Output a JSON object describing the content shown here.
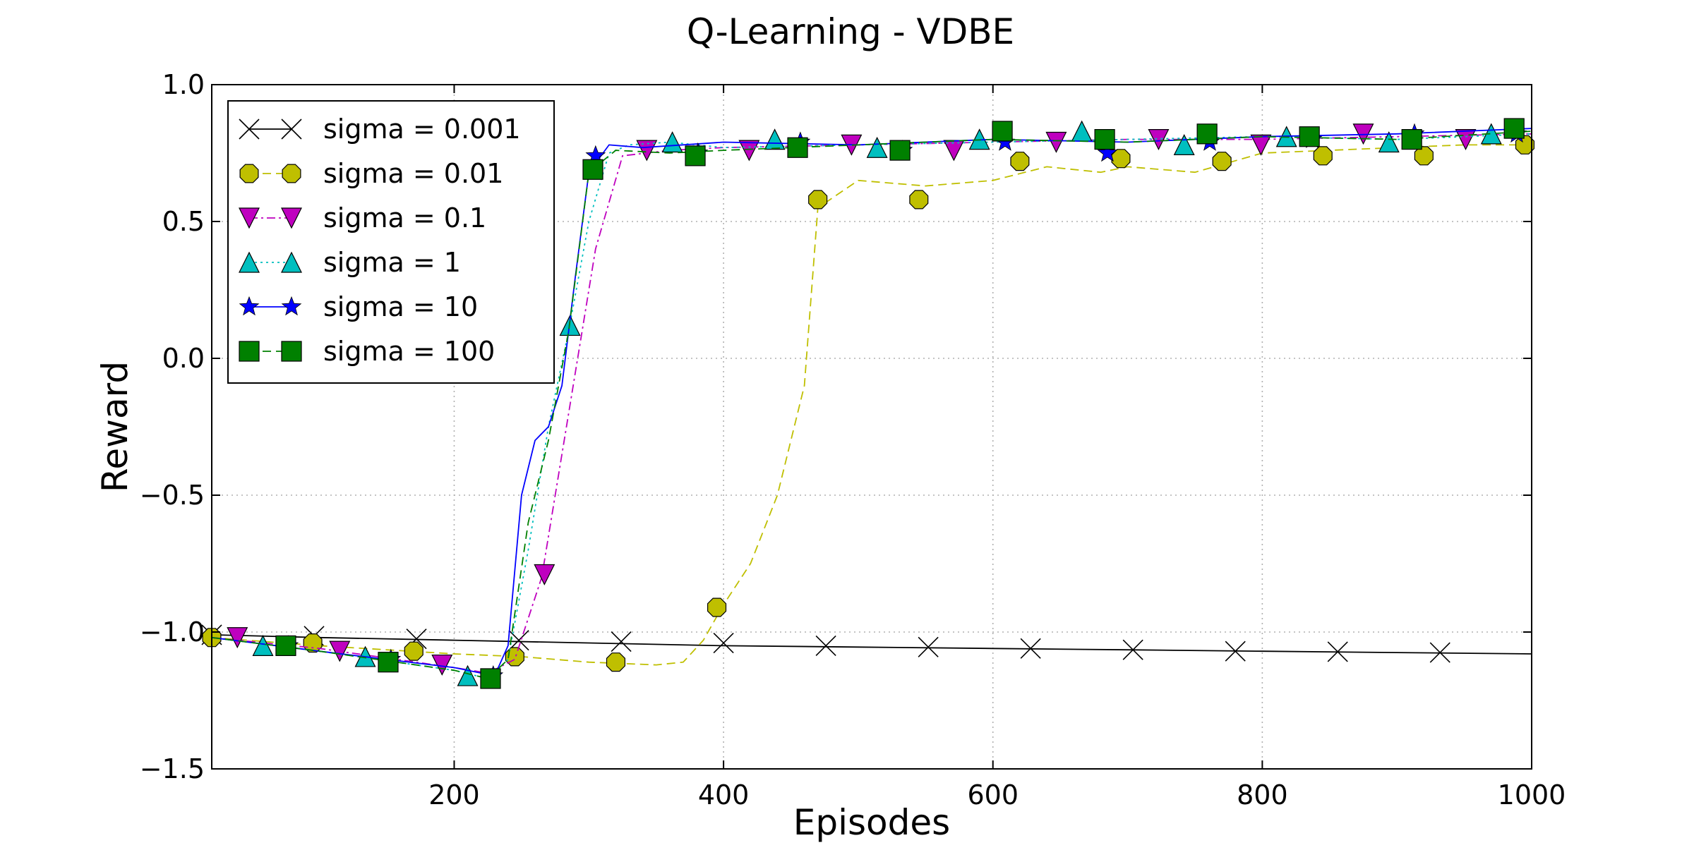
{
  "chart_data": {
    "type": "line",
    "title": "Q-Learning - VDBE",
    "xlabel": "Episodes",
    "ylabel": "Reward",
    "xlim": [
      20,
      1000
    ],
    "ylim": [
      -1.5,
      1.0
    ],
    "xticks": [
      200,
      400,
      600,
      800,
      1000
    ],
    "yticks": [
      -1.5,
      -1.0,
      -0.5,
      0.0,
      0.5,
      1.0
    ],
    "xtick_labels": [
      "200",
      "400",
      "600",
      "800",
      "1000"
    ],
    "ytick_labels": [
      "−1.5",
      "−1.0",
      "−0.5",
      "0.0",
      "0.5",
      "1.0"
    ],
    "grid": true,
    "legend_position": "upper-left",
    "series": [
      {
        "name": "sigma = 0.001",
        "color": "#000000",
        "marker": "x",
        "dash": "solid",
        "x": [
          20,
          100,
          200,
          300,
          400,
          500,
          600,
          700,
          800,
          900,
          1000
        ],
        "y": [
          -1.01,
          -1.02,
          -1.03,
          -1.04,
          -1.05,
          -1.055,
          -1.06,
          -1.065,
          -1.07,
          -1.075,
          -1.08
        ],
        "markers_x": [
          20,
          96,
          172,
          248,
          324,
          400,
          476,
          552,
          628,
          704,
          780,
          856,
          932
        ],
        "markers_y": [
          -1.01,
          -1.015,
          -1.025,
          -1.03,
          -1.035,
          -1.04,
          -1.05,
          -1.055,
          -1.06,
          -1.065,
          -1.07,
          -1.072,
          -1.075
        ]
      },
      {
        "name": "sigma = 0.01",
        "color": "#bfbf00",
        "marker": "octagon",
        "dash": "dashed",
        "x": [
          20,
          100,
          200,
          250,
          300,
          350,
          370,
          385,
          400,
          420,
          440,
          460,
          470,
          500,
          550,
          600,
          640,
          680,
          700,
          750,
          800,
          850,
          900,
          950,
          1000
        ],
        "y": [
          -1.02,
          -1.05,
          -1.08,
          -1.09,
          -1.11,
          -1.12,
          -1.11,
          -1.03,
          -0.9,
          -0.75,
          -0.5,
          -0.1,
          0.55,
          0.65,
          0.63,
          0.65,
          0.7,
          0.68,
          0.7,
          0.68,
          0.75,
          0.76,
          0.77,
          0.78,
          0.78
        ],
        "markers_x": [
          20,
          95,
          170,
          245,
          320,
          395,
          470,
          545,
          620,
          695,
          770,
          845,
          920,
          995
        ],
        "markers_y": [
          -1.02,
          -1.04,
          -1.07,
          -1.09,
          -1.11,
          -0.91,
          0.58,
          0.58,
          0.72,
          0.73,
          0.72,
          0.74,
          0.74,
          0.78
        ]
      },
      {
        "name": "sigma = 0.1",
        "color": "#bf00bf",
        "marker": "triangle-down",
        "dash": "dashdot",
        "x": [
          20,
          100,
          200,
          225,
          245,
          265,
          285,
          305,
          325,
          360,
          400,
          500,
          600,
          700,
          800,
          900,
          1000
        ],
        "y": [
          -1.02,
          -1.06,
          -1.13,
          -1.15,
          -1.1,
          -0.8,
          -0.2,
          0.4,
          0.74,
          0.76,
          0.77,
          0.78,
          0.79,
          0.8,
          0.8,
          0.81,
          0.82
        ],
        "markers_x": [
          39,
          115,
          191,
          267,
          343,
          419,
          495,
          571,
          647,
          723,
          799,
          875,
          951
        ],
        "markers_y": [
          -1.02,
          -1.07,
          -1.12,
          -0.79,
          0.76,
          0.76,
          0.78,
          0.76,
          0.79,
          0.8,
          0.78,
          0.82,
          0.8
        ]
      },
      {
        "name": "sigma = 1",
        "color": "#00bfbf",
        "marker": "triangle-up",
        "dash": "dotted",
        "x": [
          20,
          100,
          200,
          225,
          240,
          255,
          270,
          285,
          300,
          315,
          330,
          360,
          400,
          500,
          600,
          700,
          800,
          900,
          1000
        ],
        "y": [
          -1.02,
          -1.07,
          -1.14,
          -1.17,
          -1.1,
          -0.7,
          -0.25,
          0.1,
          0.5,
          0.75,
          0.78,
          0.79,
          0.77,
          0.78,
          0.79,
          0.8,
          0.81,
          0.8,
          0.82
        ],
        "markers_x": [
          58,
          134,
          210,
          286,
          362,
          438,
          514,
          590,
          666,
          742,
          818,
          894,
          970
        ],
        "markers_y": [
          -1.05,
          -1.09,
          -1.16,
          0.12,
          0.79,
          0.8,
          0.77,
          0.8,
          0.83,
          0.78,
          0.81,
          0.79,
          0.82
        ]
      },
      {
        "name": "sigma = 10",
        "color": "#0000ff",
        "marker": "star",
        "dash": "solid",
        "x": [
          20,
          100,
          200,
          230,
          240,
          250,
          260,
          270,
          280,
          290,
          300,
          315,
          340,
          400,
          500,
          600,
          700,
          800,
          900,
          1000
        ],
        "y": [
          -1.02,
          -1.07,
          -1.13,
          -1.16,
          -1.05,
          -0.5,
          -0.3,
          -0.25,
          -0.1,
          0.3,
          0.68,
          0.78,
          0.77,
          0.79,
          0.78,
          0.8,
          0.79,
          0.81,
          0.82,
          0.84
        ],
        "markers_x": [
          77,
          153,
          229,
          305,
          381,
          457,
          533,
          609,
          685,
          761,
          837,
          913,
          989
        ],
        "markers_y": [
          -1.05,
          -1.1,
          -1.16,
          0.74,
          0.75,
          0.79,
          0.76,
          0.79,
          0.75,
          0.79,
          0.8,
          0.82,
          0.82
        ]
      },
      {
        "name": "sigma = 100",
        "color": "#008000",
        "marker": "square",
        "dash": "dashed",
        "x": [
          20,
          100,
          200,
          225,
          240,
          255,
          270,
          285,
          300,
          320,
          360,
          400,
          500,
          600,
          700,
          800,
          900,
          1000
        ],
        "y": [
          -1.02,
          -1.07,
          -1.14,
          -1.17,
          -1.1,
          -0.6,
          -0.3,
          0.1,
          0.68,
          0.76,
          0.75,
          0.76,
          0.78,
          0.8,
          0.79,
          0.81,
          0.8,
          0.83
        ],
        "markers_x": [
          75,
          151,
          227,
          303,
          379,
          455,
          531,
          607,
          683,
          759,
          835,
          911,
          987
        ],
        "markers_y": [
          -1.05,
          -1.11,
          -1.17,
          0.69,
          0.74,
          0.77,
          0.76,
          0.83,
          0.8,
          0.82,
          0.81,
          0.8,
          0.84
        ]
      }
    ]
  }
}
